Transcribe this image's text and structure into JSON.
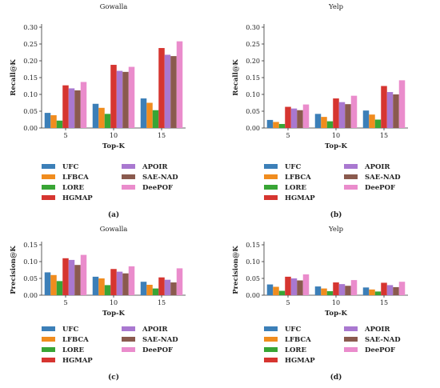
{
  "legend": [
    "UFC",
    "LFBCA",
    "LORE",
    "HGMAP",
    "APOIR",
    "SAE-NAD",
    "DeePOF"
  ],
  "colors": {
    "UFC": "#3c7fb8",
    "LFBCA": "#f08c1e",
    "LORE": "#38a535",
    "HGMAP": "#d63530",
    "APOIR": "#a978d0",
    "SAE-NAD": "#8a5a4e",
    "DeePOF": "#ea8ccc"
  },
  "chart_data": [
    {
      "type": "bar",
      "panel": "(a)",
      "title": "Gowalla",
      "xlabel": "Top-K",
      "ylabel": "Recall@K",
      "ylim": [
        0,
        0.3
      ],
      "yticks": [
        "0.00",
        "0.05",
        "0.10",
        "0.15",
        "0.20",
        "0.25",
        "0.30"
      ],
      "categories": [
        "5",
        "10",
        "15"
      ],
      "series": [
        {
          "name": "UFC",
          "values": [
            0.045,
            0.072,
            0.088
          ]
        },
        {
          "name": "LFBCA",
          "values": [
            0.038,
            0.06,
            0.075
          ]
        },
        {
          "name": "LORE",
          "values": [
            0.022,
            0.042,
            0.053
          ]
        },
        {
          "name": "HGMAP",
          "values": [
            0.127,
            0.188,
            0.238
          ]
        },
        {
          "name": "APOIR",
          "values": [
            0.118,
            0.17,
            0.218
          ]
        },
        {
          "name": "SAE-NAD",
          "values": [
            0.112,
            0.167,
            0.214
          ]
        },
        {
          "name": "DeePOF",
          "values": [
            0.137,
            0.182,
            0.258
          ]
        }
      ]
    },
    {
      "type": "bar",
      "panel": "(b)",
      "title": "Yelp",
      "xlabel": "Top-K",
      "ylabel": "Recall@K",
      "ylim": [
        0,
        0.3
      ],
      "yticks": [
        "0.00",
        "0.05",
        "0.10",
        "0.15",
        "0.20",
        "0.25",
        "0.30"
      ],
      "categories": [
        "5",
        "10",
        "15"
      ],
      "series": [
        {
          "name": "UFC",
          "values": [
            0.024,
            0.042,
            0.052
          ]
        },
        {
          "name": "LFBCA",
          "values": [
            0.018,
            0.033,
            0.04
          ]
        },
        {
          "name": "LORE",
          "values": [
            0.012,
            0.02,
            0.025
          ]
        },
        {
          "name": "HGMAP",
          "values": [
            0.063,
            0.088,
            0.125
          ]
        },
        {
          "name": "APOIR",
          "values": [
            0.058,
            0.077,
            0.107
          ]
        },
        {
          "name": "SAE-NAD",
          "values": [
            0.053,
            0.071,
            0.1
          ]
        },
        {
          "name": "DeePOF",
          "values": [
            0.07,
            0.096,
            0.142
          ]
        }
      ]
    },
    {
      "type": "bar",
      "panel": "(c)",
      "title": "Gowalla",
      "xlabel": "Top-K",
      "ylabel": "Precision@K",
      "ylim": [
        0,
        0.15
      ],
      "yticks": [
        "0.00",
        "0.05",
        "0.10",
        "0.15"
      ],
      "categories": [
        "5",
        "10",
        "15"
      ],
      "series": [
        {
          "name": "UFC",
          "values": [
            0.068,
            0.055,
            0.04
          ]
        },
        {
          "name": "LFBCA",
          "values": [
            0.06,
            0.05,
            0.031
          ]
        },
        {
          "name": "LORE",
          "values": [
            0.042,
            0.03,
            0.02
          ]
        },
        {
          "name": "HGMAP",
          "values": [
            0.11,
            0.078,
            0.053
          ]
        },
        {
          "name": "APOIR",
          "values": [
            0.105,
            0.07,
            0.046
          ]
        },
        {
          "name": "SAE-NAD",
          "values": [
            0.09,
            0.065,
            0.038
          ]
        },
        {
          "name": "DeePOF",
          "values": [
            0.12,
            0.086,
            0.08
          ]
        }
      ]
    },
    {
      "type": "bar",
      "panel": "(d)",
      "title": "Yelp",
      "xlabel": "Top-K",
      "ylabel": "Precision@K",
      "ylim": [
        0,
        0.15
      ],
      "yticks": [
        "0.00",
        "0.05",
        "0.10",
        "0.15"
      ],
      "categories": [
        "5",
        "10",
        "15"
      ],
      "series": [
        {
          "name": "UFC",
          "values": [
            0.032,
            0.026,
            0.023
          ]
        },
        {
          "name": "LFBCA",
          "values": [
            0.025,
            0.02,
            0.017
          ]
        },
        {
          "name": "LORE",
          "values": [
            0.013,
            0.012,
            0.011
          ]
        },
        {
          "name": "HGMAP",
          "values": [
            0.055,
            0.038,
            0.037
          ]
        },
        {
          "name": "APOIR",
          "values": [
            0.05,
            0.033,
            0.03
          ]
        },
        {
          "name": "SAE-NAD",
          "values": [
            0.044,
            0.028,
            0.024
          ]
        },
        {
          "name": "DeePOF",
          "values": [
            0.062,
            0.045,
            0.04
          ]
        }
      ]
    }
  ]
}
